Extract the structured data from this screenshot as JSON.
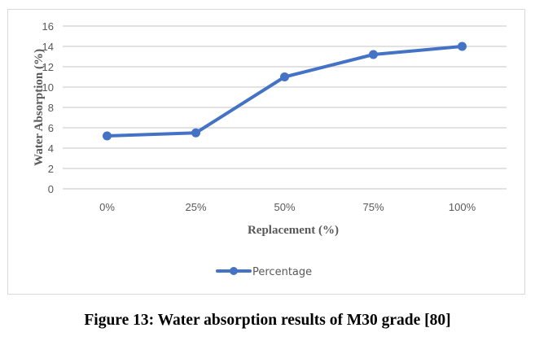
{
  "chart_data": {
    "type": "line",
    "title": "",
    "xlabel": "Replacement (%)",
    "ylabel": "Water Absorption (%)",
    "categories": [
      "0%",
      "25%",
      "50%",
      "75%",
      "100%"
    ],
    "series": [
      {
        "name": "Percentage",
        "color": "#4472c4",
        "values": [
          5.2,
          5.5,
          11.0,
          13.2,
          14.0
        ]
      }
    ],
    "ylim": [
      0,
      16
    ],
    "yticks": [
      0,
      2,
      4,
      6,
      8,
      10,
      12,
      14,
      16
    ],
    "grid": true,
    "legend_position": "bottom",
    "colors": {
      "line": "#4472c4",
      "grid": "#d9d9d9",
      "text": "#595959"
    }
  },
  "caption": "Figure 13: Water absorption results of M30 grade [80]"
}
